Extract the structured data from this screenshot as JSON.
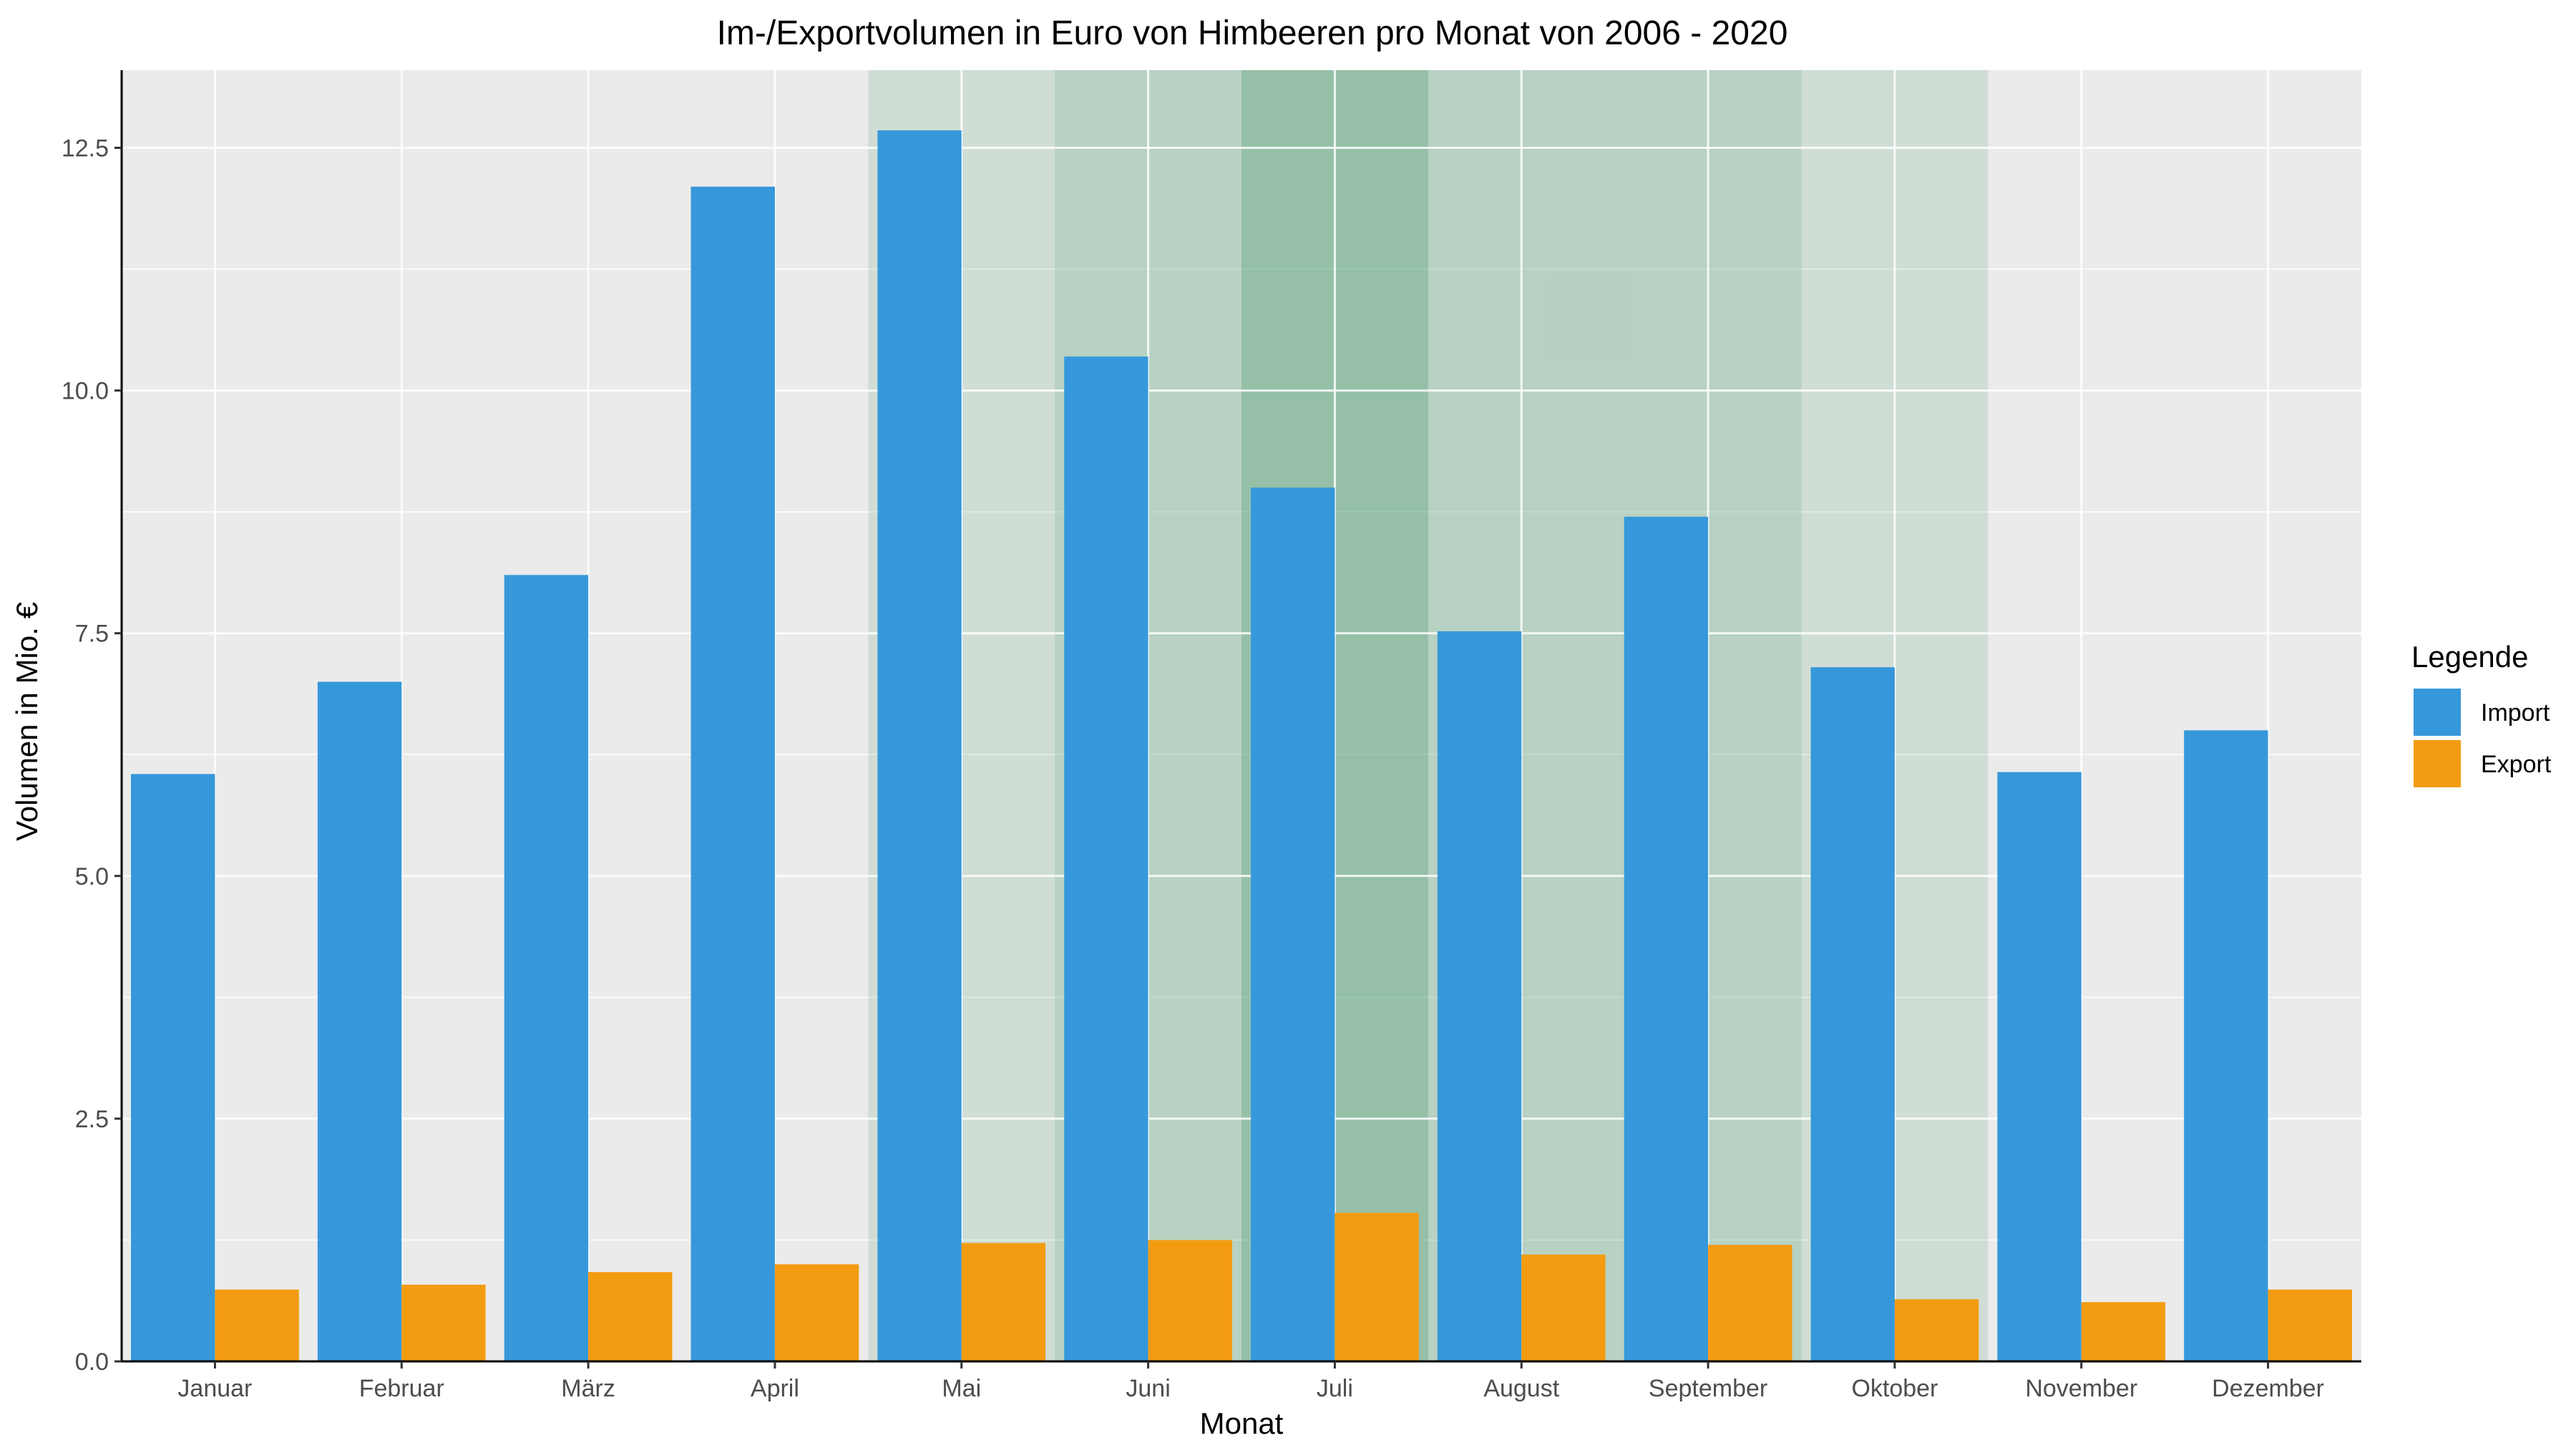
{
  "chart_data": {
    "type": "bar",
    "title": "Im-/Exportvolumen in Euro von Himbeeren pro Monat von 2006 - 2020",
    "xlabel": "Monat",
    "ylabel": "Volumen in Mio. €",
    "categories": [
      "Januar",
      "Februar",
      "März",
      "April",
      "Mai",
      "Juni",
      "Juli",
      "August",
      "September",
      "Oktober",
      "November",
      "Dezember"
    ],
    "series": [
      {
        "name": "Import",
        "color": "#3698DA",
        "values": [
          6.05,
          7.0,
          8.1,
          12.1,
          12.68,
          10.35,
          9.0,
          7.52,
          8.7,
          7.15,
          6.07,
          6.5
        ]
      },
      {
        "name": "Export",
        "color": "#F39C12",
        "values": [
          0.74,
          0.79,
          0.92,
          1.0,
          1.22,
          1.25,
          1.53,
          1.1,
          1.2,
          0.64,
          0.61,
          0.74
        ]
      }
    ],
    "ylim": [
      0,
      13.3
    ],
    "yticks": [
      0.0,
      2.5,
      5.0,
      7.5,
      10.0,
      12.5
    ],
    "ytick_labels": [
      "0.0",
      "2.5",
      "5.0",
      "7.5",
      "10.0",
      "12.5"
    ],
    "season_shading": [
      {
        "months": [
          "Mai",
          "Oktober"
        ],
        "color": "#2E8B57",
        "opacity": 0.15
      },
      {
        "months": [
          "Juni",
          "September"
        ],
        "color": "#2E8B57",
        "opacity": 0.15
      },
      {
        "months": [
          "Juli",
          "Juli"
        ],
        "color": "#2E8B57",
        "opacity": 0.25
      }
    ],
    "grid": true,
    "panel_background": "#EBEBEB",
    "legend": {
      "title": "Legende",
      "position": "right",
      "entries": [
        "Import",
        "Export"
      ]
    }
  }
}
